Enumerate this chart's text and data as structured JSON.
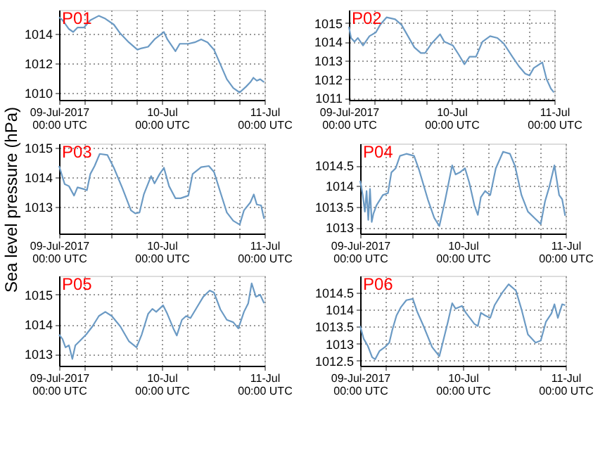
{
  "chart_data": [
    {
      "type": "line",
      "title": "P01",
      "grid": true,
      "xlim": [
        "2017-07-09T00:00",
        "2017-07-11T00:00"
      ],
      "xticks": [
        {
          "value": "2017-07-09T00:00",
          "label": "09-Jul-2017\n00:00 UTC"
        },
        {
          "value": "2017-07-09T06:00",
          "label": null
        },
        {
          "value": "2017-07-09T12:00",
          "label": null
        },
        {
          "value": "2017-07-09T18:00",
          "label": null
        },
        {
          "value": "2017-07-10T00:00",
          "label": "10-Jul\n00:00 UTC"
        },
        {
          "value": "2017-07-10T06:00",
          "label": null
        },
        {
          "value": "2017-07-10T12:00",
          "label": null
        },
        {
          "value": "2017-07-10T18:00",
          "label": null
        },
        {
          "value": "2017-07-11T00:00",
          "label": "11-Jul\n00:00 UTC"
        }
      ],
      "ylim": [
        1009.5,
        1015.6
      ],
      "yticks": [
        {
          "value": 1010,
          "label": "1010"
        },
        {
          "value": 1012,
          "label": "1012"
        },
        {
          "value": 1014,
          "label": "1014"
        }
      ],
      "x": [
        "2017-07-09T00:00",
        "2017-07-09T00:48",
        "2017-07-09T02:18",
        "2017-07-09T03:18",
        "2017-07-09T04:18",
        "2017-07-09T05:48",
        "2017-07-09T07:18",
        "2017-07-09T09:18",
        "2017-07-09T10:48",
        "2017-07-09T12:48",
        "2017-07-09T14:18",
        "2017-07-09T16:18",
        "2017-07-09T18:18",
        "2017-07-09T19:18",
        "2017-07-09T20:48",
        "2017-07-09T22:18",
        "2017-07-10T00:30",
        "2017-07-10T01:18",
        "2017-07-10T03:12",
        "2017-07-10T04:12",
        "2017-07-10T06:12",
        "2017-07-10T07:42",
        "2017-07-10T09:12",
        "2017-07-10T10:42",
        "2017-07-10T12:12",
        "2017-07-10T13:42",
        "2017-07-10T15:12",
        "2017-07-10T16:42",
        "2017-07-10T18:12",
        "2017-07-10T19:42",
        "2017-07-10T20:42",
        "2017-07-10T21:24",
        "2017-07-10T22:12",
        "2017-07-10T23:00",
        "2017-07-10T23:54"
      ],
      "series": [
        {
          "color": "#6b9ac4",
          "values": [
            1015.1,
            1014.9,
            1014.3,
            1014.1,
            1014.4,
            1014.4,
            1014.9,
            1015.2,
            1015.0,
            1014.6,
            1014.0,
            1013.4,
            1012.9,
            1013.0,
            1013.1,
            1013.6,
            1014.1,
            1013.6,
            1012.8,
            1013.3,
            1013.3,
            1013.4,
            1013.6,
            1013.4,
            1012.9,
            1011.9,
            1010.9,
            1010.3,
            1010.0,
            1010.4,
            1010.7,
            1011.0,
            1010.8,
            1010.9,
            1010.7
          ]
        }
      ]
    },
    {
      "type": "line",
      "title": "P02",
      "grid": true,
      "xlim": [
        "2017-07-09T00:00",
        "2017-07-11T00:00"
      ],
      "xticks": [
        {
          "value": "2017-07-09T00:00",
          "label": "09-Jul-2017\n00:00 UTC"
        },
        {
          "value": "2017-07-09T06:00",
          "label": null
        },
        {
          "value": "2017-07-09T12:00",
          "label": null
        },
        {
          "value": "2017-07-09T18:00",
          "label": null
        },
        {
          "value": "2017-07-10T00:00",
          "label": "10-Jul\n00:00 UTC"
        },
        {
          "value": "2017-07-10T06:00",
          "label": null
        },
        {
          "value": "2017-07-10T12:00",
          "label": null
        },
        {
          "value": "2017-07-10T18:00",
          "label": null
        },
        {
          "value": "2017-07-11T00:00",
          "label": "11-Jul\n00:00 UTC"
        }
      ],
      "ylim": [
        1010.9,
        1015.7
      ],
      "yticks": [
        {
          "value": 1011,
          "label": "1011"
        },
        {
          "value": 1012,
          "label": "1012"
        },
        {
          "value": 1013,
          "label": "1013"
        },
        {
          "value": 1014,
          "label": "1014"
        },
        {
          "value": 1015,
          "label": "1015"
        }
      ],
      "x": [
        "2017-07-09T00:00",
        "2017-07-09T00:30",
        "2017-07-09T01:18",
        "2017-07-09T02:06",
        "2017-07-09T03:18",
        "2017-07-09T04:48",
        "2017-07-09T06:18",
        "2017-07-09T07:18",
        "2017-07-09T08:48",
        "2017-07-09T10:48",
        "2017-07-09T12:18",
        "2017-07-09T13:48",
        "2017-07-09T15:18",
        "2017-07-09T16:48",
        "2017-07-09T17:48",
        "2017-07-09T19:18",
        "2017-07-09T21:18",
        "2017-07-09T22:18",
        "2017-07-10T00:18",
        "2017-07-10T01:42",
        "2017-07-10T03:00",
        "2017-07-10T04:12",
        "2017-07-10T05:42",
        "2017-07-10T07:12",
        "2017-07-10T09:00",
        "2017-07-10T10:42",
        "2017-07-10T12:12",
        "2017-07-10T14:12",
        "2017-07-10T15:42",
        "2017-07-10T17:12",
        "2017-07-10T18:12",
        "2017-07-10T19:12",
        "2017-07-10T21:12",
        "2017-07-10T22:12",
        "2017-07-10T23:12",
        "2017-07-10T23:54"
      ],
      "series": [
        {
          "color": "#6b9ac4",
          "values": [
            1014.8,
            1014.2,
            1014.0,
            1014.2,
            1013.8,
            1014.3,
            1014.5,
            1014.9,
            1015.3,
            1015.2,
            1014.9,
            1014.3,
            1013.7,
            1013.4,
            1013.4,
            1013.9,
            1014.4,
            1014.0,
            1013.8,
            1013.3,
            1012.8,
            1013.2,
            1013.2,
            1014.0,
            1014.3,
            1014.2,
            1013.9,
            1013.2,
            1012.7,
            1012.3,
            1012.2,
            1012.6,
            1012.9,
            1012.0,
            1011.5,
            1011.3
          ]
        }
      ]
    },
    {
      "type": "line",
      "title": "P03",
      "ylabel": "Sea level pressure (hPa)",
      "grid": true,
      "xlim": [
        "2017-07-09T00:00",
        "2017-07-11T00:00"
      ],
      "xticks": [
        {
          "value": "2017-07-09T00:00",
          "label": "09-Jul-2017\n00:00 UTC"
        },
        {
          "value": "2017-07-09T06:00",
          "label": null
        },
        {
          "value": "2017-07-09T12:00",
          "label": null
        },
        {
          "value": "2017-07-09T18:00",
          "label": null
        },
        {
          "value": "2017-07-10T00:00",
          "label": "10-Jul\n00:00 UTC"
        },
        {
          "value": "2017-07-10T06:00",
          "label": null
        },
        {
          "value": "2017-07-10T12:00",
          "label": null
        },
        {
          "value": "2017-07-10T18:00",
          "label": null
        },
        {
          "value": "2017-07-11T00:00",
          "label": "11-Jul\n00:00 UTC"
        }
      ],
      "ylim": [
        1012.1,
        1015.14
      ],
      "yticks": [
        {
          "value": 1013,
          "label": "1013"
        },
        {
          "value": 1014,
          "label": "1014"
        },
        {
          "value": 1015,
          "label": "1015"
        }
      ],
      "x": [
        "2017-07-09T00:00",
        "2017-07-09T01:18",
        "2017-07-09T02:18",
        "2017-07-09T03:30",
        "2017-07-09T04:18",
        "2017-07-09T05:48",
        "2017-07-09T06:30",
        "2017-07-09T07:18",
        "2017-07-09T08:18",
        "2017-07-09T09:30",
        "2017-07-09T11:18",
        "2017-07-09T12:48",
        "2017-07-09T14:48",
        "2017-07-09T16:48",
        "2017-07-09T17:48",
        "2017-07-09T18:48",
        "2017-07-09T19:48",
        "2017-07-09T21:30",
        "2017-07-09T22:18",
        "2017-07-09T23:30",
        "2017-07-10T00:30",
        "2017-07-10T01:42",
        "2017-07-10T03:12",
        "2017-07-10T04:24",
        "2017-07-10T06:12",
        "2017-07-10T07:12",
        "2017-07-10T09:12",
        "2017-07-10T11:00",
        "2017-07-10T12:12",
        "2017-07-10T13:42",
        "2017-07-10T15:12",
        "2017-07-10T16:42",
        "2017-07-10T18:12",
        "2017-07-10T19:12",
        "2017-07-10T20:42",
        "2017-07-10T21:30",
        "2017-07-10T22:12",
        "2017-07-10T23:12",
        "2017-07-10T23:54"
      ],
      "series": [
        {
          "color": "#6b9ac4",
          "values": [
            1014.38,
            1013.77,
            1013.7,
            1013.38,
            1013.66,
            1013.6,
            1013.56,
            1014.11,
            1014.38,
            1014.79,
            1014.75,
            1014.32,
            1013.63,
            1012.88,
            1012.78,
            1012.81,
            1013.42,
            1014.04,
            1013.79,
            1014.11,
            1014.32,
            1013.7,
            1013.29,
            1013.29,
            1013.38,
            1014.11,
            1014.34,
            1014.38,
            1014.18,
            1013.49,
            1012.81,
            1012.53,
            1012.4,
            1012.88,
            1013.15,
            1013.42,
            1013.08,
            1013.05,
            1012.6
          ]
        }
      ]
    },
    {
      "type": "line",
      "title": "P04",
      "grid": true,
      "xlim": [
        "2017-07-09T00:00",
        "2017-07-11T00:00"
      ],
      "xticks": [
        {
          "value": "2017-07-09T00:00",
          "label": "09-Jul-2017\n00:00 UTC"
        },
        {
          "value": "2017-07-09T06:00",
          "label": null
        },
        {
          "value": "2017-07-09T12:00",
          "label": null
        },
        {
          "value": "2017-07-09T18:00",
          "label": null
        },
        {
          "value": "2017-07-10T00:00",
          "label": "10-Jul\n00:00 UTC"
        },
        {
          "value": "2017-07-10T06:00",
          "label": null
        },
        {
          "value": "2017-07-10T12:00",
          "label": null
        },
        {
          "value": "2017-07-10T18:00",
          "label": null
        },
        {
          "value": "2017-07-11T00:00",
          "label": "11-Jul\n00:00 UTC"
        }
      ],
      "ylim": [
        1012.85,
        1015.03
      ],
      "yticks": [
        {
          "value": 1013,
          "label": "1013"
        },
        {
          "value": 1013.5,
          "label": "1013.5"
        },
        {
          "value": 1014,
          "label": "1014"
        },
        {
          "value": 1014.5,
          "label": "1014.5"
        }
      ],
      "x": [
        "2017-07-09T00:00",
        "2017-07-09T00:36",
        "2017-07-09T01:06",
        "2017-07-09T01:30",
        "2017-07-09T01:54",
        "2017-07-09T02:18",
        "2017-07-09T02:42",
        "2017-07-09T03:06",
        "2017-07-09T03:48",
        "2017-07-09T05:18",
        "2017-07-09T06:30",
        "2017-07-09T07:18",
        "2017-07-09T08:18",
        "2017-07-09T09:18",
        "2017-07-09T10:48",
        "2017-07-09T12:36",
        "2017-07-09T13:48",
        "2017-07-09T15:48",
        "2017-07-09T17:18",
        "2017-07-09T18:30",
        "2017-07-09T19:48",
        "2017-07-09T21:30",
        "2017-07-09T22:18",
        "2017-07-09T23:18",
        "2017-07-10T00:30",
        "2017-07-10T01:30",
        "2017-07-10T02:42",
        "2017-07-10T03:30",
        "2017-07-10T04:12",
        "2017-07-10T05:12",
        "2017-07-10T06:24",
        "2017-07-10T07:42",
        "2017-07-10T09:24",
        "2017-07-10T11:00",
        "2017-07-10T12:12",
        "2017-07-10T13:42",
        "2017-07-10T15:12",
        "2017-07-10T16:42",
        "2017-07-10T18:12",
        "2017-07-10T19:12",
        "2017-07-10T20:12",
        "2017-07-10T21:24",
        "2017-07-10T22:30",
        "2017-07-10T23:12",
        "2017-07-10T23:54"
      ],
      "series": [
        {
          "color": "#6b9ac4",
          "values": [
            1014.13,
            1013.78,
            1013.38,
            1013.88,
            1013.18,
            1013.93,
            1013.13,
            1013.33,
            1013.53,
            1013.78,
            1013.83,
            1014.33,
            1014.43,
            1014.73,
            1014.78,
            1014.73,
            1014.38,
            1013.68,
            1013.23,
            1013.03,
            1013.63,
            1014.5,
            1014.28,
            1014.33,
            1014.43,
            1014.08,
            1013.53,
            1013.3,
            1013.73,
            1013.88,
            1013.78,
            1014.43,
            1014.83,
            1014.78,
            1014.48,
            1013.78,
            1013.38,
            1013.23,
            1013.08,
            1013.63,
            1013.98,
            1014.5,
            1013.78,
            1013.68,
            1013.28
          ]
        }
      ]
    },
    {
      "type": "line",
      "title": "P05",
      "grid": true,
      "xlim": [
        "2017-07-09T00:00",
        "2017-07-11T00:00"
      ],
      "xticks": [
        {
          "value": "2017-07-09T00:00",
          "label": "09-Jul-2017\n00:00 UTC"
        },
        {
          "value": "2017-07-09T06:00",
          "label": null
        },
        {
          "value": "2017-07-09T12:00",
          "label": null
        },
        {
          "value": "2017-07-09T18:00",
          "label": null
        },
        {
          "value": "2017-07-10T00:00",
          "label": "10-Jul\n00:00 UTC"
        },
        {
          "value": "2017-07-10T06:00",
          "label": null
        },
        {
          "value": "2017-07-10T12:00",
          "label": null
        },
        {
          "value": "2017-07-10T18:00",
          "label": null
        },
        {
          "value": "2017-07-11T00:00",
          "label": "11-Jul\n00:00 UTC"
        }
      ],
      "ylim": [
        1012.6,
        1015.64
      ],
      "yticks": [
        {
          "value": 1013,
          "label": "1013"
        },
        {
          "value": 1014,
          "label": "1014"
        },
        {
          "value": 1015,
          "label": "1015"
        }
      ],
      "x": [
        "2017-07-09T00:00",
        "2017-07-09T00:48",
        "2017-07-09T01:30",
        "2017-07-09T02:18",
        "2017-07-09T03:06",
        "2017-07-09T03:48",
        "2017-07-09T04:48",
        "2017-07-09T06:18",
        "2017-07-09T07:48",
        "2017-07-09T09:18",
        "2017-07-09T10:48",
        "2017-07-09T12:18",
        "2017-07-09T14:18",
        "2017-07-09T16:18",
        "2017-07-09T18:06",
        "2017-07-09T19:18",
        "2017-07-09T20:48",
        "2017-07-09T21:48",
        "2017-07-09T22:42",
        "2017-07-10T00:18",
        "2017-07-10T01:18",
        "2017-07-10T02:42",
        "2017-07-10T03:30",
        "2017-07-10T04:42",
        "2017-07-10T05:42",
        "2017-07-10T06:42",
        "2017-07-10T08:12",
        "2017-07-10T09:42",
        "2017-07-10T11:12",
        "2017-07-10T12:12",
        "2017-07-10T13:42",
        "2017-07-10T15:12",
        "2017-07-10T16:42",
        "2017-07-10T17:54",
        "2017-07-10T19:12",
        "2017-07-10T20:12",
        "2017-07-10T21:00",
        "2017-07-10T22:00",
        "2017-07-10T23:00",
        "2017-07-10T23:54"
      ],
      "series": [
        {
          "color": "#6b9ac4",
          "values": [
            1013.65,
            1013.5,
            1013.22,
            1013.29,
            1012.83,
            1013.29,
            1013.43,
            1013.65,
            1013.93,
            1014.28,
            1014.42,
            1014.28,
            1013.93,
            1013.43,
            1013.22,
            1013.65,
            1014.35,
            1014.52,
            1014.42,
            1014.64,
            1014.35,
            1013.86,
            1013.62,
            1014.15,
            1014.28,
            1014.21,
            1014.57,
            1014.93,
            1015.14,
            1015.07,
            1014.5,
            1014.15,
            1014.07,
            1013.86,
            1014.42,
            1014.71,
            1015.38,
            1014.93,
            1015.0,
            1014.71
          ]
        }
      ]
    },
    {
      "type": "line",
      "title": "P06",
      "grid": true,
      "xlim": [
        "2017-07-09T00:00",
        "2017-07-11T00:00"
      ],
      "xticks": [
        {
          "value": "2017-07-09T00:00",
          "label": "09-Jul-2017\n00:00 UTC"
        },
        {
          "value": "2017-07-09T06:00",
          "label": null
        },
        {
          "value": "2017-07-09T12:00",
          "label": null
        },
        {
          "value": "2017-07-09T18:00",
          "label": null
        },
        {
          "value": "2017-07-10T00:00",
          "label": "10-Jul\n00:00 UTC"
        },
        {
          "value": "2017-07-10T06:00",
          "label": null
        },
        {
          "value": "2017-07-10T12:00",
          "label": null
        },
        {
          "value": "2017-07-10T18:00",
          "label": null
        },
        {
          "value": "2017-07-11T00:00",
          "label": "11-Jul\n00:00 UTC"
        }
      ],
      "ylim": [
        1012.35,
        1015.0
      ],
      "yticks": [
        {
          "value": 1012.5,
          "label": "1012.5"
        },
        {
          "value": 1013,
          "label": "1013"
        },
        {
          "value": 1013.5,
          "label": "1013.5"
        },
        {
          "value": 1014,
          "label": "1014"
        },
        {
          "value": 1014.5,
          "label": "1014.5"
        }
      ],
      "x": [
        "2017-07-09T00:00",
        "2017-07-09T00:48",
        "2017-07-09T01:48",
        "2017-07-09T02:48",
        "2017-07-09T03:30",
        "2017-07-09T04:30",
        "2017-07-09T05:48",
        "2017-07-09T06:48",
        "2017-07-09T07:30",
        "2017-07-09T08:30",
        "2017-07-09T09:30",
        "2017-07-09T10:48",
        "2017-07-09T12:18",
        "2017-07-09T13:18",
        "2017-07-09T14:48",
        "2017-07-09T16:48",
        "2017-07-09T18:30",
        "2017-07-09T19:18",
        "2017-07-09T20:30",
        "2017-07-09T21:30",
        "2017-07-09T22:18",
        "2017-07-09T23:48",
        "2017-07-10T00:42",
        "2017-07-10T02:42",
        "2017-07-10T03:30",
        "2017-07-10T04:12",
        "2017-07-10T05:12",
        "2017-07-10T06:24",
        "2017-07-10T07:24",
        "2017-07-10T09:12",
        "2017-07-10T10:42",
        "2017-07-10T12:24",
        "2017-07-10T13:42",
        "2017-07-10T15:12",
        "2017-07-10T17:00",
        "2017-07-10T18:12",
        "2017-07-10T19:24",
        "2017-07-10T20:42",
        "2017-07-10T21:24",
        "2017-07-10T22:12",
        "2017-07-10T23:12",
        "2017-07-10T23:54"
      ],
      "series": [
        {
          "color": "#6b9ac4",
          "values": [
            1013.52,
            1013.15,
            1012.93,
            1012.6,
            1012.54,
            1012.78,
            1012.9,
            1013.03,
            1013.4,
            1013.83,
            1014.07,
            1014.28,
            1014.32,
            1013.95,
            1013.52,
            1012.9,
            1012.63,
            1013.03,
            1013.64,
            1014.19,
            1014.03,
            1014.11,
            1013.91,
            1013.58,
            1013.52,
            1013.91,
            1013.83,
            1013.76,
            1014.13,
            1014.5,
            1014.75,
            1014.56,
            1014.01,
            1013.27,
            1013.03,
            1013.09,
            1013.64,
            1013.89,
            1014.16,
            1013.76,
            1014.16,
            1014.13
          ]
        }
      ]
    }
  ]
}
